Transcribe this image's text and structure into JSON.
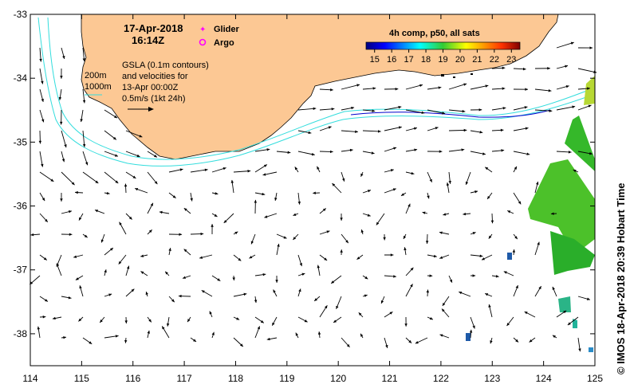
{
  "map": {
    "date": "17-Apr-2018",
    "time": "16:14Z",
    "legend": {
      "glider_label": "Glider",
      "argo_label": "Argo",
      "glider_color": "#ff00ff",
      "argo_color": "#ff00ff"
    },
    "depth_labels": [
      "200m",
      "1000m"
    ],
    "gsla_lines": [
      "GSLA (0.1m contours)",
      "and velocities for",
      "13-Apr 00:00Z",
      "0.5m/s (1kt 24h)"
    ],
    "colorbar": {
      "title": "4h comp, p50, all sats",
      "ticks": [
        "15",
        "16",
        "17",
        "18",
        "19",
        "20",
        "21",
        "22",
        "23"
      ],
      "min": 14.5,
      "max": 23.5
    },
    "x_axis": {
      "ticks": [
        "114",
        "115",
        "116",
        "117",
        "118",
        "119",
        "120",
        "121",
        "122",
        "123",
        "124",
        "125"
      ],
      "min": 114,
      "max": 125
    },
    "y_axis": {
      "ticks": [
        "-33",
        "-34",
        "-35",
        "-36",
        "-37",
        "-38"
      ],
      "min": -38.5,
      "max": -33
    },
    "credit": "© IMOS 18-Apr-2018 20:39 Hobart Time",
    "colors": {
      "land": "#fcc894",
      "contour": "#33dddd",
      "contour_deep": "#0000cc",
      "arrow": "#000000"
    }
  }
}
